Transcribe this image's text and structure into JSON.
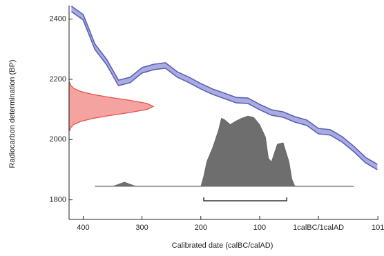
{
  "chart_data": {
    "type": "calibration",
    "xlabel": "Calibrated date (calBC/calAD)",
    "ylabel": "Radiocarbon determination (BP)",
    "xlim": [
      -424,
      102
    ],
    "ylim": [
      1735,
      2445
    ],
    "xticks": [
      {
        "value": -400,
        "label": "400"
      },
      {
        "value": -300,
        "label": "300"
      },
      {
        "value": -200,
        "label": "200"
      },
      {
        "value": -100,
        "label": "100"
      },
      {
        "value": 0,
        "label": "1calBC/1calAD"
      },
      {
        "value": 101,
        "label": "101"
      }
    ],
    "yticks": [
      1800,
      2000,
      2200,
      2400
    ],
    "curve": {
      "color": "#5a5fb8",
      "x": [
        -420,
        -400,
        -380,
        -360,
        -340,
        -320,
        -300,
        -280,
        -260,
        -240,
        -220,
        -200,
        -180,
        -160,
        -140,
        -120,
        -100,
        -80,
        -60,
        -40,
        -20,
        0,
        20,
        40,
        60,
        80,
        100
      ],
      "upper": [
        2443,
        2415,
        2317,
        2266,
        2197,
        2207,
        2239,
        2250,
        2255,
        2225,
        2207,
        2186,
        2168,
        2154,
        2140,
        2138,
        2117,
        2099,
        2092,
        2076,
        2065,
        2037,
        2033,
        2010,
        1978,
        1941,
        1918
      ],
      "lower": [
        2425,
        2397,
        2299,
        2248,
        2179,
        2189,
        2221,
        2232,
        2237,
        2207,
        2189,
        2168,
        2150,
        2136,
        2122,
        2120,
        2099,
        2081,
        2074,
        2058,
        2047,
        2019,
        2015,
        1992,
        1960,
        1923,
        1900
      ]
    },
    "measurement": {
      "color": "#e8534a",
      "bp": [
        2030,
        2040,
        2050,
        2060,
        2070,
        2080,
        2090,
        2100,
        2110,
        2120,
        2130,
        2140,
        2150,
        2160,
        2170,
        2180,
        2190
      ],
      "density": [
        0.006,
        0.02,
        0.056,
        0.135,
        0.278,
        0.487,
        0.726,
        0.923,
        1,
        0.923,
        0.726,
        0.487,
        0.278,
        0.135,
        0.056,
        0.02,
        0.006
      ]
    },
    "calibrated": {
      "color": "#6e6e6e",
      "x": [
        -380,
        -350,
        -340,
        -330,
        -320,
        -310,
        -200,
        -195,
        -190,
        -185,
        -180,
        -170,
        -165,
        -160,
        -150,
        -140,
        -130,
        -120,
        -110,
        -100,
        -90,
        -85,
        -80,
        -70,
        -60,
        -50,
        -45,
        -40,
        60
      ],
      "density": [
        0,
        0,
        0.03,
        0.06,
        0.03,
        0,
        0,
        0.15,
        0.35,
        0.45,
        0.55,
        0.8,
        0.97,
        0.95,
        0.88,
        0.93,
        0.97,
        1,
        0.98,
        0.88,
        0.7,
        0.4,
        0.35,
        0.6,
        0.62,
        0.35,
        0.1,
        0,
        0
      ]
    },
    "range": [
      -195,
      -54
    ]
  }
}
